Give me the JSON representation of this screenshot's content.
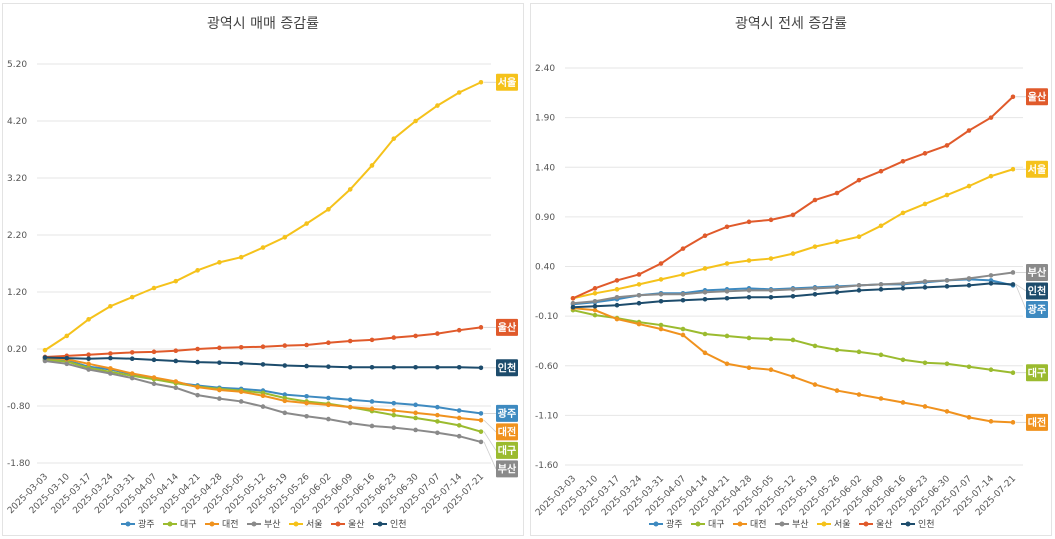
{
  "chart_data": [
    {
      "type": "line",
      "title": "광역시 매매 증감률",
      "ylim": [
        -1.8,
        5.2
      ],
      "yticks": [
        "5.20",
        "4.20",
        "3.20",
        "2.20",
        "1.20",
        "0.20",
        "-0.80",
        "-1.80"
      ],
      "x": [
        "2025-03-03",
        "2025-03-10",
        "2025-03-17",
        "2025-03-24",
        "2025-03-31",
        "2025-04-07",
        "2025-04-14",
        "2025-04-21",
        "2025-04-28",
        "2025-05-05",
        "2025-05-12",
        "2025-05-19",
        "2025-05-26",
        "2025-06-02",
        "2025-06-09",
        "2025-06-16",
        "2025-06-23",
        "2025-06-30",
        "2025-07-07",
        "2025-07-14",
        "2025-07-21"
      ],
      "grid": true,
      "legend": "bottom",
      "series": [
        {
          "name": "광주",
          "color": "#3e8ac0",
          "values": [
            0.02,
            0.0,
            -0.11,
            -0.16,
            -0.24,
            -0.32,
            -0.39,
            -0.44,
            -0.48,
            -0.5,
            -0.53,
            -0.6,
            -0.63,
            -0.66,
            -0.69,
            -0.72,
            -0.75,
            -0.78,
            -0.82,
            -0.88,
            -0.93
          ]
        },
        {
          "name": "대구",
          "color": "#9bbb2f",
          "values": [
            0.0,
            -0.02,
            -0.13,
            -0.2,
            -0.27,
            -0.33,
            -0.4,
            -0.46,
            -0.5,
            -0.53,
            -0.57,
            -0.66,
            -0.72,
            -0.76,
            -0.82,
            -0.89,
            -0.96,
            -1.01,
            -1.07,
            -1.14,
            -1.25
          ]
        },
        {
          "name": "대전",
          "color": "#f0921e",
          "values": [
            0.04,
            0.02,
            -0.06,
            -0.14,
            -0.23,
            -0.3,
            -0.37,
            -0.47,
            -0.52,
            -0.55,
            -0.62,
            -0.71,
            -0.75,
            -0.78,
            -0.82,
            -0.85,
            -0.88,
            -0.92,
            -0.96,
            -1.01,
            -1.05
          ]
        },
        {
          "name": "부산",
          "color": "#8a8a8a",
          "values": [
            -0.01,
            -0.06,
            -0.16,
            -0.23,
            -0.31,
            -0.41,
            -0.48,
            -0.61,
            -0.67,
            -0.72,
            -0.81,
            -0.92,
            -0.98,
            -1.03,
            -1.1,
            -1.15,
            -1.18,
            -1.22,
            -1.27,
            -1.33,
            -1.43
          ]
        },
        {
          "name": "서울",
          "color": "#f5c21b",
          "values": [
            0.18,
            0.43,
            0.72,
            0.95,
            1.11,
            1.27,
            1.39,
            1.58,
            1.72,
            1.81,
            1.98,
            2.16,
            2.4,
            2.65,
            3.0,
            3.42,
            3.89,
            4.2,
            4.47,
            4.7,
            4.88
          ]
        },
        {
          "name": "울산",
          "color": "#e05a2b",
          "values": [
            0.06,
            0.08,
            0.1,
            0.12,
            0.14,
            0.15,
            0.17,
            0.2,
            0.22,
            0.23,
            0.24,
            0.26,
            0.27,
            0.31,
            0.34,
            0.36,
            0.4,
            0.43,
            0.47,
            0.53,
            0.58
          ]
        },
        {
          "name": "인천",
          "color": "#1d4c6c",
          "values": [
            0.05,
            0.04,
            0.03,
            0.04,
            0.03,
            0.01,
            -0.01,
            -0.03,
            -0.04,
            -0.05,
            -0.07,
            -0.09,
            -0.1,
            -0.11,
            -0.12,
            -0.12,
            -0.12,
            -0.12,
            -0.12,
            -0.12,
            -0.13
          ]
        }
      ],
      "end_labels": [
        {
          "text": "서울",
          "series": "서울"
        },
        {
          "text": "울산",
          "series": "울산"
        },
        {
          "text": "인천",
          "series": "인천"
        },
        {
          "text": "광주",
          "series": "광주"
        },
        {
          "text": "대전",
          "series": "대전"
        },
        {
          "text": "대구",
          "series": "대구"
        },
        {
          "text": "부산",
          "series": "부산"
        }
      ]
    },
    {
      "type": "line",
      "title": "광역시 전세 증감률",
      "ylim": [
        -1.6,
        2.4
      ],
      "yticks": [
        "2.40",
        "1.90",
        "1.40",
        "0.90",
        "0.40",
        "-0.10",
        "-0.60",
        "-1.10",
        "-1.60"
      ],
      "x": [
        "2025-03-03",
        "2025-03-10",
        "2025-03-17",
        "2025-03-24",
        "2025-03-31",
        "2025-04-07",
        "2025-04-14",
        "2025-04-21",
        "2025-04-28",
        "2025-05-05",
        "2025-05-12",
        "2025-05-19",
        "2025-05-26",
        "2025-06-02",
        "2025-06-09",
        "2025-06-16",
        "2025-06-23",
        "2025-06-30",
        "2025-07-07",
        "2025-07-14",
        "2025-07-21"
      ],
      "grid": true,
      "legend": "bottom",
      "series": [
        {
          "name": "광주",
          "color": "#3e8ac0",
          "values": [
            0.02,
            0.04,
            0.07,
            0.11,
            0.13,
            0.13,
            0.16,
            0.17,
            0.18,
            0.17,
            0.18,
            0.19,
            0.2,
            0.21,
            0.22,
            0.22,
            0.24,
            0.26,
            0.27,
            0.26,
            0.21
          ]
        },
        {
          "name": "대구",
          "color": "#9bbb2f",
          "values": [
            -0.04,
            -0.09,
            -0.12,
            -0.16,
            -0.19,
            -0.23,
            -0.28,
            -0.3,
            -0.32,
            -0.33,
            -0.34,
            -0.4,
            -0.44,
            -0.46,
            -0.49,
            -0.54,
            -0.57,
            -0.58,
            -0.61,
            -0.64,
            -0.67
          ]
        },
        {
          "name": "대전",
          "color": "#f0921e",
          "values": [
            -0.02,
            -0.04,
            -0.13,
            -0.18,
            -0.23,
            -0.29,
            -0.47,
            -0.58,
            -0.62,
            -0.64,
            -0.71,
            -0.79,
            -0.85,
            -0.89,
            -0.93,
            -0.97,
            -1.01,
            -1.06,
            -1.12,
            -1.16,
            -1.17
          ]
        },
        {
          "name": "부산",
          "color": "#8a8a8a",
          "values": [
            0.03,
            0.05,
            0.09,
            0.11,
            0.12,
            0.12,
            0.14,
            0.15,
            0.16,
            0.16,
            0.17,
            0.18,
            0.19,
            0.21,
            0.22,
            0.23,
            0.25,
            0.26,
            0.28,
            0.31,
            0.34
          ]
        },
        {
          "name": "서울",
          "color": "#f5c21b",
          "values": [
            0.08,
            0.13,
            0.17,
            0.22,
            0.27,
            0.32,
            0.38,
            0.43,
            0.46,
            0.48,
            0.53,
            0.6,
            0.65,
            0.7,
            0.81,
            0.94,
            1.03,
            1.12,
            1.21,
            1.31,
            1.38
          ]
        },
        {
          "name": "울산",
          "color": "#e05a2b",
          "values": [
            0.08,
            0.18,
            0.26,
            0.32,
            0.43,
            0.58,
            0.71,
            0.8,
            0.85,
            0.87,
            0.92,
            1.07,
            1.14,
            1.27,
            1.36,
            1.46,
            1.54,
            1.62,
            1.77,
            1.9,
            2.11
          ]
        },
        {
          "name": "인천",
          "color": "#1d4c6c",
          "values": [
            -0.01,
            0.0,
            0.01,
            0.03,
            0.05,
            0.06,
            0.07,
            0.08,
            0.09,
            0.09,
            0.1,
            0.12,
            0.14,
            0.16,
            0.17,
            0.18,
            0.19,
            0.2,
            0.21,
            0.23,
            0.22
          ]
        }
      ],
      "end_labels": [
        {
          "text": "울산",
          "series": "울산"
        },
        {
          "text": "서울",
          "series": "서울"
        },
        {
          "text": "부산",
          "series": "부산"
        },
        {
          "text": "광주",
          "series": "광주"
        },
        {
          "text": "인천",
          "series": "인천"
        },
        {
          "text": "대구",
          "series": "대구"
        },
        {
          "text": "대전",
          "series": "대전"
        }
      ]
    }
  ]
}
